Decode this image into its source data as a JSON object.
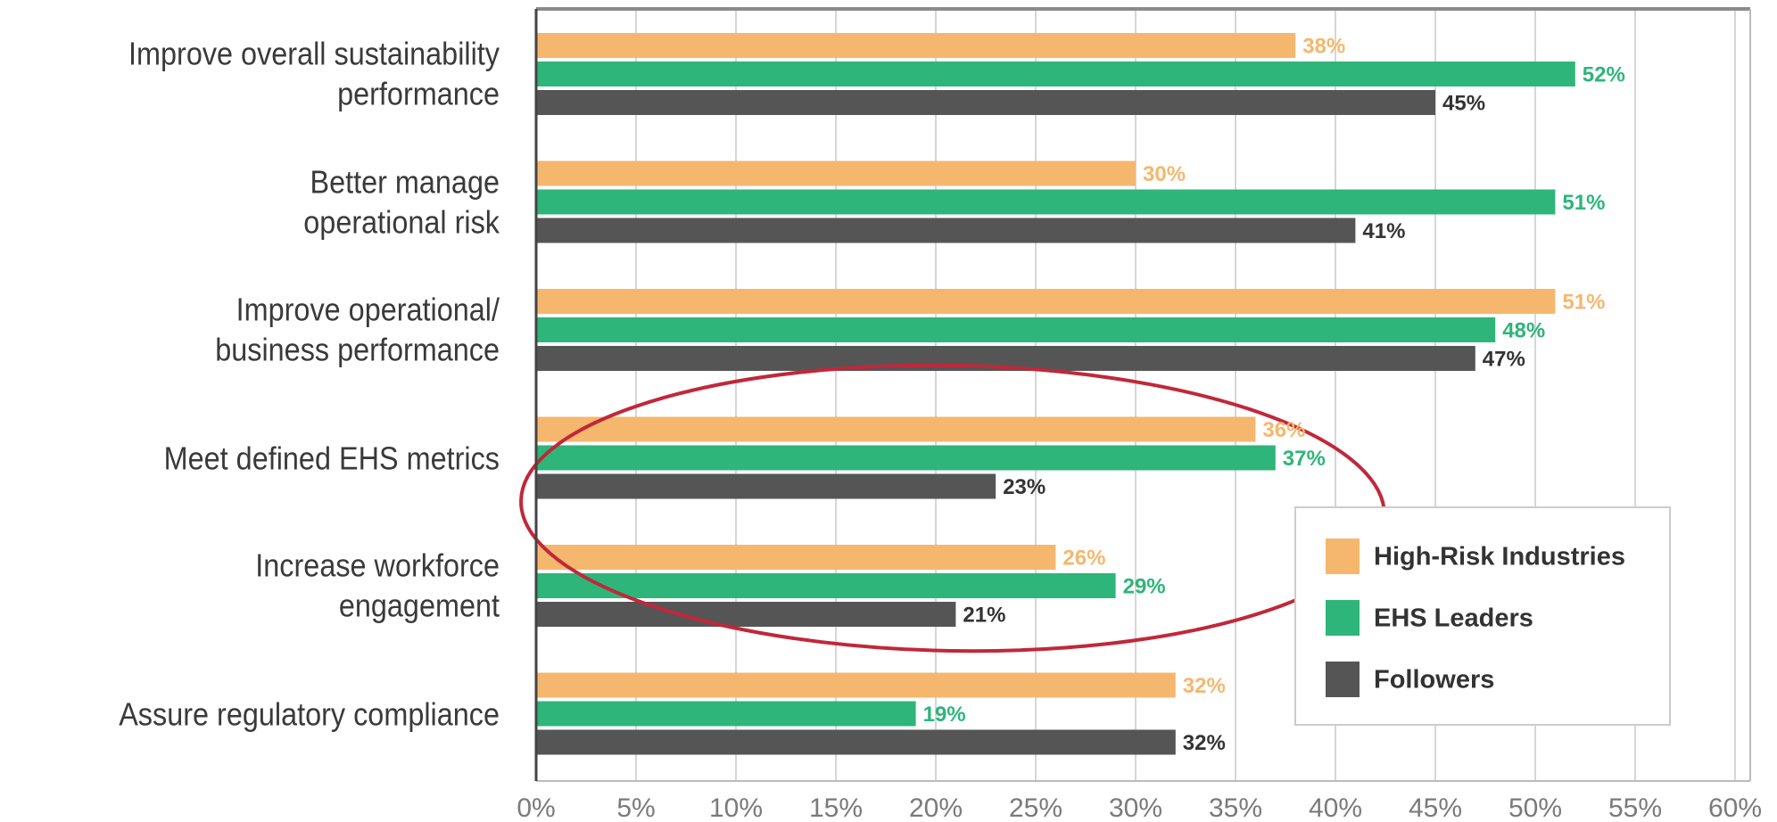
{
  "chart_data": {
    "type": "barh",
    "categories": [
      "Improve overall sustainability\nperformance",
      "Better manage\noperational risk",
      "Improve operational/\nbusiness performance",
      "Meet defined EHS metrics",
      "Increase workforce\nengagement",
      "Assure regulatory compliance"
    ],
    "series": [
      {
        "name": "High-Risk Industries",
        "color": "#f5b76e",
        "label_color": "#f5b76e",
        "values": [
          38,
          30,
          51,
          36,
          26,
          32
        ],
        "value_labels": [
          "38%",
          "30%",
          "51%",
          "36%",
          "26%",
          "32%"
        ]
      },
      {
        "name": "EHS Leaders",
        "color": "#2eb57a",
        "label_color": "#2eb57a",
        "values": [
          52,
          51,
          48,
          37,
          29,
          19
        ],
        "value_labels": [
          "52%",
          "51%",
          "48%",
          "37%",
          "29%",
          "19%"
        ]
      },
      {
        "name": "Followers",
        "color": "#555555",
        "label_color": "#333333",
        "values": [
          45,
          41,
          47,
          23,
          21,
          32
        ],
        "value_labels": [
          "45%",
          "41%",
          "47%",
          "23%",
          "21%",
          "32%"
        ]
      }
    ],
    "xlim": [
      0,
      60
    ],
    "xticks": [
      {
        "value": 0,
        "label": "0%"
      },
      {
        "value": 5,
        "label": "5%"
      },
      {
        "value": 10,
        "label": "10%"
      },
      {
        "value": 15,
        "label": "15%"
      },
      {
        "value": 20,
        "label": "20%"
      },
      {
        "value": 25,
        "label": "25%"
      },
      {
        "value": 30,
        "label": "30%"
      },
      {
        "value": 35,
        "label": "35%"
      },
      {
        "value": 40,
        "label": "40%"
      },
      {
        "value": 45,
        "label": "45%"
      },
      {
        "value": 50,
        "label": "50%"
      },
      {
        "value": 55,
        "label": "55%"
      },
      {
        "value": 60,
        "label": "60%"
      }
    ],
    "grid": true,
    "legend": "lower right"
  }
}
